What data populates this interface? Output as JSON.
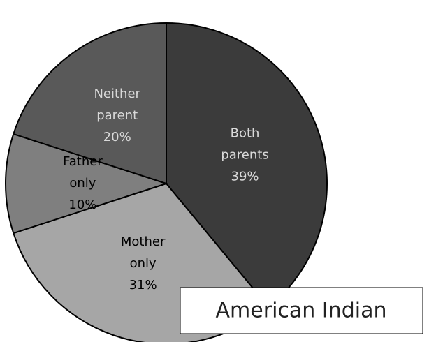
{
  "chart_data": {
    "type": "pie",
    "title": "American Indian",
    "categories": [
      "Both parents",
      "Mother only",
      "Father only",
      "Neither parent"
    ],
    "values": [
      39,
      31,
      10,
      20
    ],
    "value_labels": [
      "39%",
      "31%",
      "10%",
      "20%"
    ],
    "colors": [
      "#3b3b3b",
      "#a6a6a6",
      "#7f7f7f",
      "#595959"
    ]
  }
}
